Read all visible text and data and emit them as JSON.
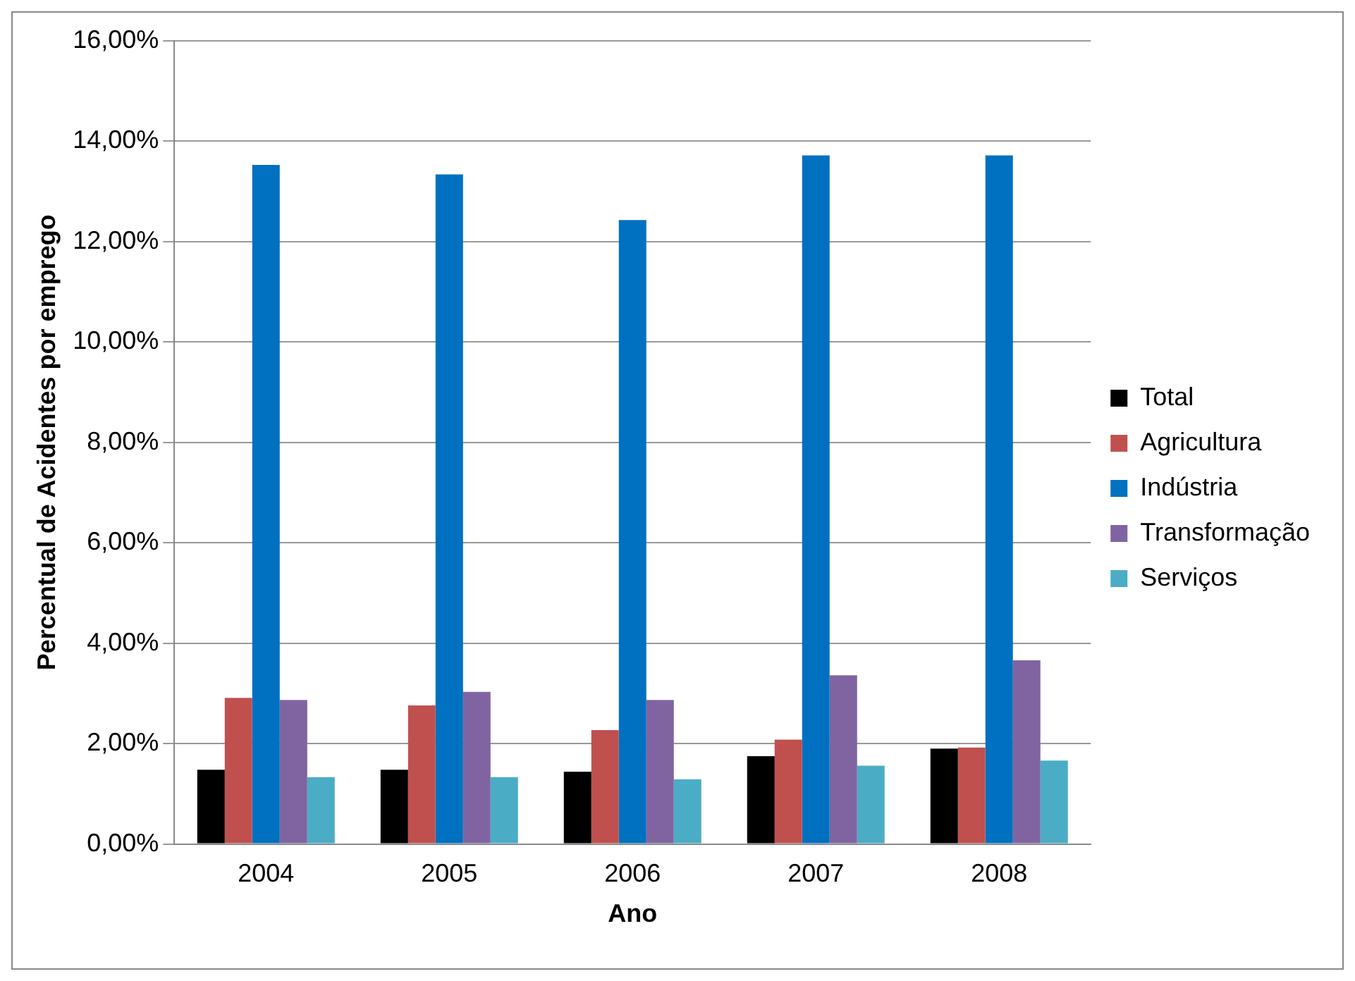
{
  "chart_data": {
    "type": "bar",
    "xlabel": "Ano",
    "ylabel": "Percentual de Acidentes por emprego",
    "categories": [
      "2004",
      "2005",
      "2006",
      "2007",
      "2008"
    ],
    "series": [
      {
        "name": "Total",
        "color": "#000000",
        "values": [
          1.48,
          1.48,
          1.44,
          1.75,
          1.9
        ]
      },
      {
        "name": "Agricultura",
        "color": "#c0504d",
        "values": [
          2.91,
          2.76,
          2.27,
          2.08,
          1.92
        ]
      },
      {
        "name": "Indústria",
        "color": "#0070c0",
        "values": [
          13.53,
          13.34,
          12.43,
          13.72,
          13.72
        ]
      },
      {
        "name": "Transformação",
        "color": "#8064a2",
        "values": [
          2.87,
          3.03,
          2.87,
          3.36,
          3.66
        ]
      },
      {
        "name": "Serviços",
        "color": "#4bacc6",
        "values": [
          1.33,
          1.33,
          1.29,
          1.56,
          1.66
        ]
      }
    ],
    "ylim": [
      0,
      16
    ],
    "yticks": [
      {
        "value": 0,
        "label": "0,00%"
      },
      {
        "value": 2,
        "label": "2,00%"
      },
      {
        "value": 4,
        "label": "4,00%"
      },
      {
        "value": 6,
        "label": "6,00%"
      },
      {
        "value": 8,
        "label": "8,00%"
      },
      {
        "value": 10,
        "label": "10,00%"
      },
      {
        "value": 12,
        "label": "12,00%"
      },
      {
        "value": 14,
        "label": "14,00%"
      },
      {
        "value": 16,
        "label": "16,00%"
      }
    ],
    "grid": "y",
    "legend": "right"
  }
}
